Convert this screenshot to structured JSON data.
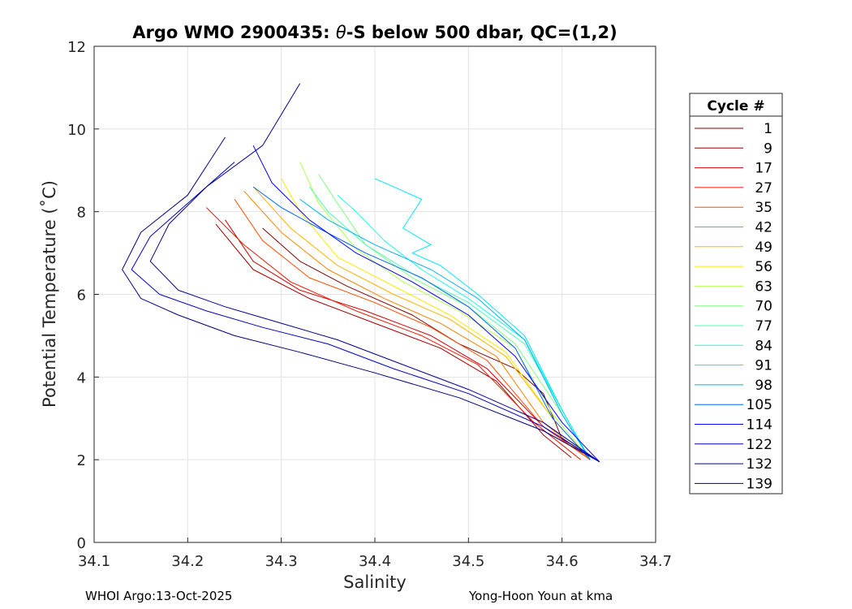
{
  "chart_data": {
    "type": "line",
    "title_prefix": "Argo WMO 2900435: ",
    "title_theta": "θ",
    "title_suffix": "-S below 500 dbar,  QC=(1,2)",
    "xlabel": "Salinity",
    "ylabel": "Potential Temperature (˚C)",
    "xlim": [
      34.1,
      34.7
    ],
    "ylim": [
      0,
      12
    ],
    "xticks": [
      "34.1",
      "34.2",
      "34.3",
      "34.4",
      "34.5",
      "34.6",
      "34.7"
    ],
    "yticks": [
      "0",
      "2",
      "4",
      "6",
      "8",
      "10",
      "12"
    ],
    "grid": true,
    "legend": {
      "title": "Cycle #",
      "placement": "right-outside",
      "entries": [
        {
          "label": "1",
          "color": "#800000"
        },
        {
          "label": "9",
          "color": "#a00000"
        },
        {
          "label": "17",
          "color": "#d40000"
        },
        {
          "label": "27",
          "color": "#f51a00"
        },
        {
          "label": "35",
          "color": "#ff4d00"
        },
        {
          "label": "42",
          "color": "#ff8000"
        },
        {
          "label": "49",
          "color": "#ffb300"
        },
        {
          "label": "56",
          "color": "#ffe600"
        },
        {
          "label": "63",
          "color": "#b3ff4d"
        },
        {
          "label": "70",
          "color": "#80ff80"
        },
        {
          "label": "77",
          "color": "#4dffb3"
        },
        {
          "label": "84",
          "color": "#1affe6"
        },
        {
          "label": "91",
          "color": "#00e6ff"
        },
        {
          "label": "98",
          "color": "#00b3ff"
        },
        {
          "label": "105",
          "color": "#0066ff"
        },
        {
          "label": "114",
          "color": "#0000ff"
        },
        {
          "label": "122",
          "color": "#0000c8"
        },
        {
          "label": "132",
          "color": "#000096"
        },
        {
          "label": "139",
          "color": "#000080"
        }
      ]
    },
    "series": [
      {
        "name": "1",
        "color": "#800000",
        "s": [
          34.64,
          34.6,
          34.58,
          34.55,
          34.49,
          34.44,
          34.37,
          34.32,
          34.28
        ],
        "t": [
          1.95,
          2.5,
          3.6,
          4.2,
          4.8,
          5.5,
          6.2,
          6.8,
          7.6
        ]
      },
      {
        "name": "9",
        "color": "#a00000",
        "s": [
          34.61,
          34.58,
          34.53,
          34.47,
          34.4,
          34.33,
          34.27,
          34.23
        ],
        "t": [
          2.05,
          2.6,
          3.9,
          4.7,
          5.3,
          5.9,
          6.6,
          7.7
        ]
      },
      {
        "name": "17",
        "color": "#d40000",
        "s": [
          34.63,
          34.58,
          34.52,
          34.46,
          34.39,
          34.32,
          34.27,
          34.24
        ],
        "t": [
          2.0,
          2.8,
          4.2,
          5.0,
          5.6,
          6.1,
          6.8,
          7.8
        ]
      },
      {
        "name": "27",
        "color": "#f51a00",
        "s": [
          34.62,
          34.57,
          34.51,
          34.45,
          34.38,
          34.31,
          34.26,
          34.22
        ],
        "t": [
          2.0,
          2.9,
          4.3,
          5.0,
          5.6,
          6.3,
          7.2,
          8.1
        ]
      },
      {
        "name": "35",
        "color": "#ff4d00",
        "s": [
          34.63,
          34.58,
          34.52,
          34.46,
          34.4,
          34.33,
          34.28,
          34.25
        ],
        "t": [
          2.0,
          2.8,
          4.4,
          5.2,
          5.8,
          6.4,
          7.3,
          8.3
        ]
      },
      {
        "name": "42",
        "color": "#ff8000",
        "s": [
          34.63,
          34.58,
          34.53,
          34.47,
          34.41,
          34.35,
          34.3,
          34.26
        ],
        "t": [
          2.0,
          2.9,
          4.5,
          5.3,
          5.9,
          6.6,
          7.5,
          8.5
        ]
      },
      {
        "name": "49",
        "color": "#ffb300",
        "s": [
          34.63,
          34.59,
          34.54,
          34.48,
          34.42,
          34.36,
          34.31,
          34.27
        ],
        "t": [
          2.0,
          3.0,
          4.5,
          5.4,
          6.0,
          6.7,
          7.6,
          8.6
        ]
      },
      {
        "name": "56",
        "color": "#ffe600",
        "s": [
          34.63,
          34.59,
          34.54,
          34.48,
          34.42,
          34.36,
          34.32,
          34.3
        ],
        "t": [
          2.0,
          3.0,
          4.6,
          5.5,
          6.2,
          6.9,
          8.0,
          8.8
        ]
      },
      {
        "name": "63",
        "color": "#b3ff4d",
        "s": [
          34.63,
          34.59,
          34.55,
          34.49,
          34.43,
          34.38,
          34.34,
          34.32
        ],
        "t": [
          2.0,
          3.1,
          4.7,
          5.6,
          6.3,
          7.1,
          8.2,
          9.2
        ]
      },
      {
        "name": "70",
        "color": "#80ff80",
        "s": [
          34.63,
          34.6,
          34.55,
          34.5,
          34.44,
          34.39,
          34.36,
          34.34
        ],
        "t": [
          2.0,
          3.1,
          4.8,
          5.7,
          6.4,
          7.2,
          8.2,
          8.9
        ]
      },
      {
        "name": "77",
        "color": "#4dffb3",
        "s": [
          34.63,
          34.6,
          34.56,
          34.5,
          34.44,
          34.39,
          34.35,
          34.33
        ],
        "t": [
          2.0,
          3.2,
          4.8,
          5.8,
          6.5,
          7.2,
          8.0,
          8.6
        ]
      },
      {
        "name": "84",
        "color": "#1affe6",
        "s": [
          34.63,
          34.6,
          34.56,
          34.5,
          34.45,
          34.41,
          34.38,
          34.36
        ],
        "t": [
          2.0,
          3.2,
          4.9,
          5.9,
          6.6,
          7.3,
          8.0,
          8.4
        ]
      },
      {
        "name": "91",
        "color": "#00e6ff",
        "s": [
          34.63,
          34.6,
          34.56,
          34.51,
          34.47,
          34.44,
          34.46,
          34.43,
          34.45,
          34.42,
          34.4
        ],
        "t": [
          2.0,
          3.2,
          5.0,
          6.0,
          6.7,
          7.0,
          7.2,
          7.6,
          8.3,
          8.6,
          8.8
        ]
      },
      {
        "name": "98",
        "color": "#00b3ff",
        "s": [
          34.63,
          34.6,
          34.56,
          34.51,
          34.46,
          34.4,
          34.35,
          34.32
        ],
        "t": [
          2.0,
          3.1,
          4.9,
          5.9,
          6.6,
          7.2,
          7.8,
          8.3
        ]
      },
      {
        "name": "105",
        "color": "#0066ff",
        "s": [
          34.63,
          34.59,
          34.55,
          34.5,
          34.45,
          34.39,
          34.34,
          34.3,
          34.27
        ],
        "t": [
          2.0,
          3.0,
          4.7,
          5.7,
          6.4,
          7.0,
          7.6,
          8.1,
          8.6
        ]
      },
      {
        "name": "114",
        "color": "#0000ff",
        "s": [
          34.64,
          34.6,
          34.55,
          34.5,
          34.44,
          34.38,
          34.33,
          34.29,
          34.27
        ],
        "t": [
          1.95,
          2.9,
          4.5,
          5.5,
          6.3,
          7.0,
          7.8,
          8.7,
          9.6
        ]
      },
      {
        "name": "122",
        "color": "#0000c8",
        "s": [
          34.64,
          34.58,
          34.5,
          34.42,
          34.35,
          34.28,
          34.22,
          34.17,
          34.14,
          34.16,
          34.2,
          34.25
        ],
        "t": [
          1.95,
          2.8,
          3.6,
          4.2,
          4.8,
          5.2,
          5.6,
          6.0,
          6.6,
          7.4,
          8.2,
          9.2
        ]
      },
      {
        "name": "132",
        "color": "#000096",
        "s": [
          34.64,
          34.58,
          34.5,
          34.43,
          34.36,
          34.3,
          34.24,
          34.19,
          34.16,
          34.18,
          34.22,
          34.28,
          34.32
        ],
        "t": [
          1.95,
          2.9,
          3.7,
          4.3,
          4.9,
          5.3,
          5.7,
          6.1,
          6.8,
          7.7,
          8.6,
          9.6,
          11.1
        ]
      },
      {
        "name": "139",
        "color": "#000080",
        "s": [
          34.64,
          34.58,
          34.49,
          34.4,
          34.32,
          34.25,
          34.19,
          34.15,
          34.13,
          34.15,
          34.2,
          34.24
        ],
        "t": [
          1.95,
          2.7,
          3.5,
          4.1,
          4.6,
          5.0,
          5.5,
          5.9,
          6.6,
          7.5,
          8.4,
          9.8
        ]
      }
    ]
  },
  "footer": {
    "left": "WHOI Argo:13-Oct-2025",
    "right": "Yong-Hoon Youn at kma"
  }
}
